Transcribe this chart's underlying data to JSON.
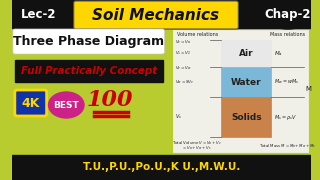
{
  "bg_color": "#b8cc30",
  "title_text": "Soil Mechanics",
  "lec_text": "Lec-2",
  "chap_text": "Chap-2",
  "three_phase_text": "Three Phase Diagram",
  "concept_text": "Full Practically Concept",
  "score_text": "100",
  "best_text": "BEST",
  "four_k_text": "4K",
  "bottom_text": "T.U.,P.U.,Po.U.,K U.,M.W.U.",
  "air_color": "#e8e8e8",
  "water_color": "#7bb8d8",
  "solid_color": "#c8824a",
  "diagram_bg": "#f0efe8",
  "air_label": "Air",
  "water_label": "Water",
  "solid_label": "Solids",
  "vol_label": "Volume relations",
  "mass_label": "Mass relations",
  "title_bg": "#FFD700",
  "lec_chap_bg": "#111111",
  "concept_bg": "#111111",
  "bottom_bg": "#111111",
  "bottom_fg": "#FFD700",
  "score_color": "#cc0000",
  "concept_color": "#cc0000",
  "four_k_bg": "#1133aa",
  "four_k_fg": "#FFD700",
  "four_k_border": "#FFD700",
  "best_bg": "#cc2288",
  "best_fg": "#ffffff"
}
